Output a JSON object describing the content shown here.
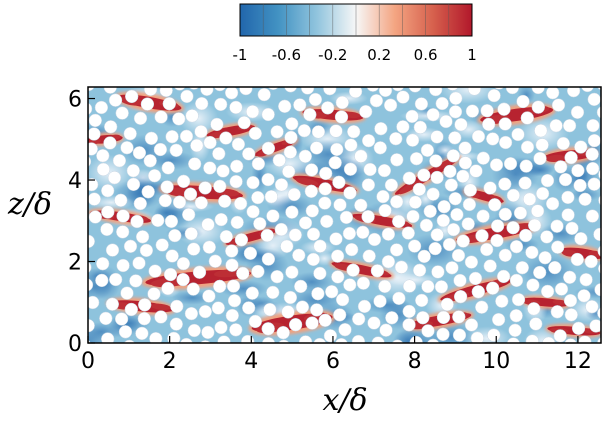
{
  "chart_data": {
    "type": "heatmap",
    "description_note": "",
    "xlabel": "x/δ",
    "ylabel": "z/δ",
    "xlim": [
      0,
      12.566
    ],
    "ylim": [
      0,
      6.283
    ],
    "x_ticks": [
      0,
      2,
      4,
      6,
      8,
      10,
      12
    ],
    "y_ticks": [
      0,
      2,
      4,
      6
    ],
    "colorbar": {
      "range": [
        -1,
        1
      ],
      "ticks": [
        -1,
        -0.6,
        -0.2,
        0.2,
        0.6,
        1
      ],
      "tick_labels": [
        "-1",
        "-0.6",
        "-0.2",
        "0.2",
        "0.6",
        "1"
      ],
      "colormap": "blue-white-red",
      "stops": [
        "#2166ac",
        "#4393c3",
        "#92c5de",
        "#f7f7f7",
        "#f4a582",
        "#d6604d",
        "#b2182b"
      ],
      "orientation": "horizontal",
      "placement": "top-center"
    },
    "field": {
      "background_value": -0.35,
      "particle_color": "#ffffff",
      "red_streaks": [
        {
          "x": 1.5,
          "z": 5.9,
          "len": 1.6,
          "w": 0.28,
          "angle": -10
        },
        {
          "x": 3.5,
          "z": 5.2,
          "len": 1.2,
          "w": 0.22,
          "angle": 10
        },
        {
          "x": 6.0,
          "z": 5.6,
          "len": 1.5,
          "w": 0.25,
          "angle": -5
        },
        {
          "x": 10.5,
          "z": 5.6,
          "len": 1.8,
          "w": 0.3,
          "angle": 8
        },
        {
          "x": 8.3,
          "z": 4.1,
          "len": 1.8,
          "w": 0.22,
          "angle": 30
        },
        {
          "x": 11.8,
          "z": 4.6,
          "len": 1.3,
          "w": 0.25,
          "angle": 5
        },
        {
          "x": 2.8,
          "z": 3.7,
          "len": 2.0,
          "w": 0.3,
          "angle": -5
        },
        {
          "x": 5.8,
          "z": 3.9,
          "len": 1.6,
          "w": 0.24,
          "angle": -12
        },
        {
          "x": 0.8,
          "z": 3.1,
          "len": 1.5,
          "w": 0.22,
          "angle": -8
        },
        {
          "x": 4.0,
          "z": 2.6,
          "len": 1.3,
          "w": 0.2,
          "angle": 15
        },
        {
          "x": 7.2,
          "z": 3.0,
          "len": 1.5,
          "w": 0.22,
          "angle": -10
        },
        {
          "x": 10.0,
          "z": 2.7,
          "len": 2.0,
          "w": 0.28,
          "angle": 10
        },
        {
          "x": 12.1,
          "z": 2.2,
          "len": 1.1,
          "w": 0.24,
          "angle": -8
        },
        {
          "x": 2.7,
          "z": 1.6,
          "len": 2.6,
          "w": 0.32,
          "angle": 5
        },
        {
          "x": 6.7,
          "z": 1.8,
          "len": 1.5,
          "w": 0.22,
          "angle": -12
        },
        {
          "x": 9.5,
          "z": 1.3,
          "len": 1.8,
          "w": 0.25,
          "angle": 15
        },
        {
          "x": 11.2,
          "z": 1.0,
          "len": 1.2,
          "w": 0.2,
          "angle": -5
        },
        {
          "x": 1.3,
          "z": 0.9,
          "len": 1.6,
          "w": 0.25,
          "angle": -6
        },
        {
          "x": 5.0,
          "z": 0.5,
          "len": 2.0,
          "w": 0.35,
          "angle": 8
        },
        {
          "x": 8.6,
          "z": 0.55,
          "len": 1.6,
          "w": 0.25,
          "angle": 10
        },
        {
          "x": 11.9,
          "z": 0.3,
          "len": 1.3,
          "w": 0.2,
          "angle": -5
        },
        {
          "x": 4.6,
          "z": 4.8,
          "len": 1.1,
          "w": 0.2,
          "angle": 20
        },
        {
          "x": 9.7,
          "z": 3.6,
          "len": 1.0,
          "w": 0.2,
          "angle": -15
        },
        {
          "x": 0.4,
          "z": 5.0,
          "len": 0.9,
          "w": 0.2,
          "angle": 5
        }
      ]
    }
  }
}
